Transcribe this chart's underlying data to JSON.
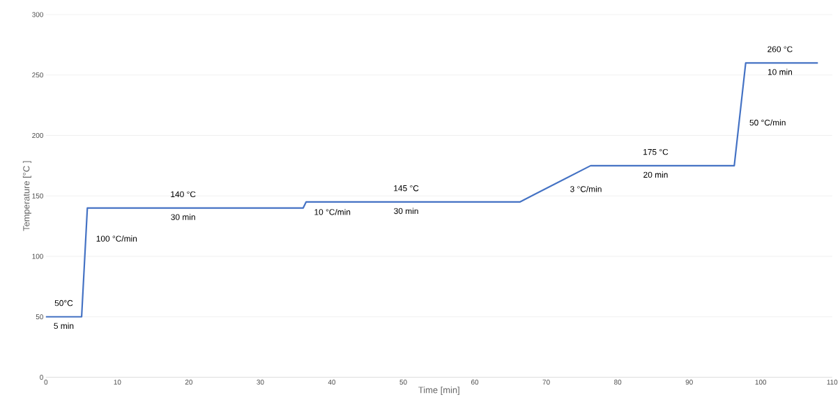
{
  "chart_data": {
    "type": "line",
    "xlabel": "Time [min]",
    "ylabel": "Temperature [°C ]",
    "x": [
      0,
      5,
      5.8,
      36,
      36.4,
      66.3,
      76.2,
      96.3,
      97.9,
      108
    ],
    "values": [
      50,
      50,
      140,
      140,
      145,
      145,
      175,
      175,
      260,
      260
    ],
    "color": "#4472c4",
    "marker": "none",
    "line_style": "solid",
    "grid": "y",
    "xlim": [
      0,
      110
    ],
    "xticks": [
      0,
      10,
      20,
      30,
      40,
      50,
      60,
      70,
      80,
      90,
      100,
      110
    ],
    "ylim": [
      0,
      300
    ],
    "yticks": [
      0,
      50,
      100,
      150,
      200,
      250,
      300
    ],
    "annotations": [
      {
        "text": "50°C",
        "x": 2.5,
        "y": 50
      },
      {
        "text": "5 min",
        "x": 2.5,
        "y": 50
      },
      {
        "text": "100 °C/min",
        "x": 5.7,
        "y": 121
      },
      {
        "text": "140 °C",
        "x": 19.2,
        "y": 140
      },
      {
        "text": "30 min",
        "x": 19.2,
        "y": 140
      },
      {
        "text": "10 °C/min",
        "x": 36.2,
        "y": 143
      },
      {
        "text": "145 °C",
        "x": 50.4,
        "y": 145
      },
      {
        "text": "30 min",
        "x": 50.4,
        "y": 145
      },
      {
        "text": "3 °C/min",
        "x": 72,
        "y": 162
      },
      {
        "text": "175 °C",
        "x": 85.3,
        "y": 175
      },
      {
        "text": "20 min",
        "x": 85.3,
        "y": 175
      },
      {
        "text": "50 °C/min",
        "x": 97.1,
        "y": 217
      },
      {
        "text": "260 °C",
        "x": 102.7,
        "y": 260
      },
      {
        "text": "10 min",
        "x": 102.7,
        "y": 260
      }
    ]
  }
}
